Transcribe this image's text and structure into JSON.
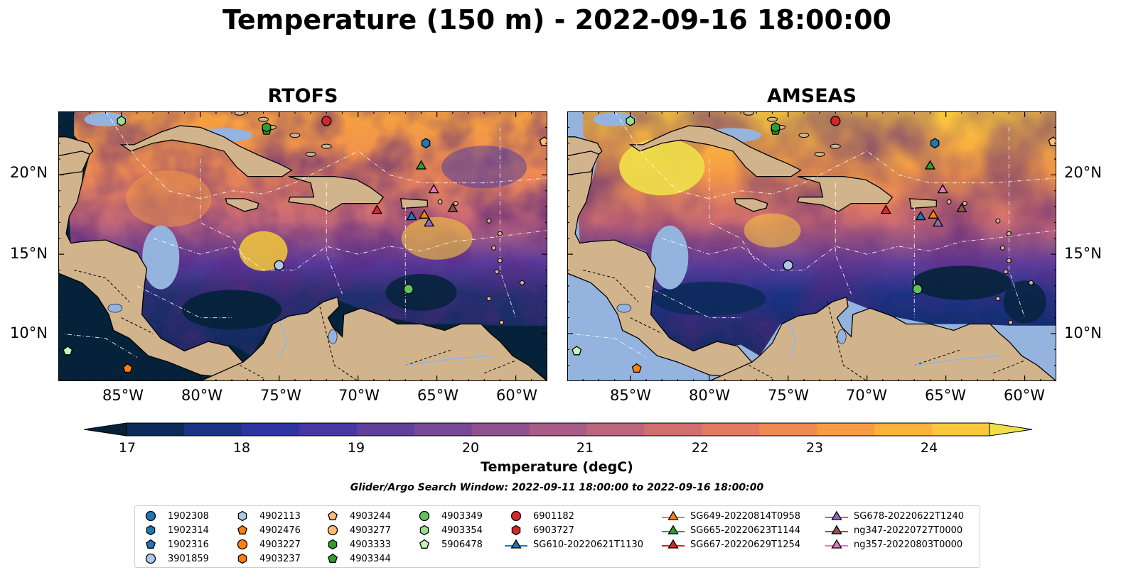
{
  "title": "Temperature (150 m) - 2022-09-16 18:00:00",
  "panels": [
    {
      "name": "RTOFS"
    },
    {
      "name": "AMSEAS"
    }
  ],
  "x_tick_labels": [
    "85°W",
    "80°W",
    "75°W",
    "70°W",
    "65°W",
    "60°W"
  ],
  "y_tick_labels": [
    "20°N",
    "15°N",
    "10°N"
  ],
  "colorbar": {
    "label": "Temperature (degC)",
    "ticks": [
      "17",
      "18",
      "19",
      "20",
      "21",
      "22",
      "23",
      "24"
    ],
    "range": [
      16.75,
      24.5
    ],
    "colors": [
      "#05223a",
      "#0c2a5a",
      "#1b3385",
      "#2e34a1",
      "#4737a4",
      "#613f9c",
      "#784896",
      "#90528f",
      "#a85c86",
      "#bd657c",
      "#d16e70",
      "#e27a61",
      "#ef8a52",
      "#f79c44",
      "#fbb13a",
      "#f9c83c",
      "#efe049"
    ]
  },
  "search_window": "Glider/Argo Search Window: 2022-09-11 18:00:00 to 2022-09-16 18:00:00",
  "legend": [
    {
      "label": "1902308",
      "marker": "circle",
      "color": "#1f77b4"
    },
    {
      "label": "1902314",
      "marker": "hexagon",
      "color": "#1f77b4"
    },
    {
      "label": "1902316",
      "marker": "pentagon",
      "color": "#1f77b4"
    },
    {
      "label": "3901859",
      "marker": "circle",
      "color": "#aec7e8"
    },
    {
      "label": "4902113",
      "marker": "hexagon",
      "color": "#aec7e8"
    },
    {
      "label": "4902476",
      "marker": "pentagon",
      "color": "#ff7f0e"
    },
    {
      "label": "4903227",
      "marker": "circle",
      "color": "#ff7f0e"
    },
    {
      "label": "4903237",
      "marker": "hexagon",
      "color": "#ff7f0e"
    },
    {
      "label": "4903244",
      "marker": "pentagon",
      "color": "#ffbb78"
    },
    {
      "label": "4903277",
      "marker": "circle",
      "color": "#ffbb78"
    },
    {
      "label": "4903333",
      "marker": "hexagon",
      "color": "#2ca02c"
    },
    {
      "label": "4903344",
      "marker": "pentagon",
      "color": "#2ca02c"
    },
    {
      "label": "4903349",
      "marker": "circle",
      "color": "#5fc45f"
    },
    {
      "label": "4903354",
      "marker": "hexagon",
      "color": "#98df8a"
    },
    {
      "label": "5906478",
      "marker": "pentagon",
      "color": "#c7f5b5"
    },
    {
      "label": "6901182",
      "marker": "circle",
      "color": "#d62728"
    },
    {
      "label": "6903727",
      "marker": "hexagon",
      "color": "#d62728"
    },
    {
      "label": "SG610-20220621T1130",
      "marker": "triangle-line",
      "color": "#1f77b4"
    },
    {
      "label": "SG649-20220814T0958",
      "marker": "triangle-line",
      "color": "#ff7f0e"
    },
    {
      "label": "SG665-20220623T1144",
      "marker": "triangle-line",
      "color": "#2ca02c"
    },
    {
      "label": "SG667-20220629T1254",
      "marker": "triangle-line",
      "color": "#d62728"
    },
    {
      "label": "SG678-20220622T1240",
      "marker": "triangle-line",
      "color": "#9467bd"
    },
    {
      "label": "ng347-20220727T0000",
      "marker": "triangle-line",
      "color": "#8c564b"
    },
    {
      "label": "ng357-20220803T0000",
      "marker": "triangle-line",
      "color": "#e377c2"
    }
  ],
  "map_extent": {
    "lon": [
      -89,
      -58
    ],
    "lat": [
      7,
      24
    ]
  },
  "observations": [
    {
      "id": "1902314",
      "lon": -65.7,
      "lat": 22.0
    },
    {
      "id": "3901859",
      "lon": -75.0,
      "lat": 14.3
    },
    {
      "id": "4903344",
      "lon": -75.8,
      "lat": 22.8
    },
    {
      "id": "4903333",
      "lon": -75.8,
      "lat": 23.0
    },
    {
      "id": "6901182",
      "lon": -72.0,
      "lat": 23.4
    },
    {
      "id": "4903349",
      "lon": -66.8,
      "lat": 12.8
    },
    {
      "id": "4903354",
      "lon": -85.0,
      "lat": 23.4
    },
    {
      "id": "4903244",
      "lon": -58.2,
      "lat": 22.1
    },
    {
      "id": "5906478",
      "lon": -88.4,
      "lat": 8.9
    },
    {
      "id": "4902476",
      "lon": -84.6,
      "lat": 7.8
    },
    {
      "id": "SG665-20220623T1144",
      "lon": -66.0,
      "lat": 20.6
    },
    {
      "id": "ng357-20220803T0000",
      "lon": -65.2,
      "lat": 19.1
    },
    {
      "id": "SG667-20220629T1254",
      "lon": -68.8,
      "lat": 17.8
    },
    {
      "id": "SG610-20220621T1130",
      "lon": -66.6,
      "lat": 17.4
    },
    {
      "id": "SG649-20220814T0958",
      "lon": -65.8,
      "lat": 17.5
    },
    {
      "id": "SG678-20220622T1240",
      "lon": -65.5,
      "lat": 17.0
    },
    {
      "id": "ng347-20220727T0000",
      "lon": -64.0,
      "lat": 17.9
    }
  ]
}
